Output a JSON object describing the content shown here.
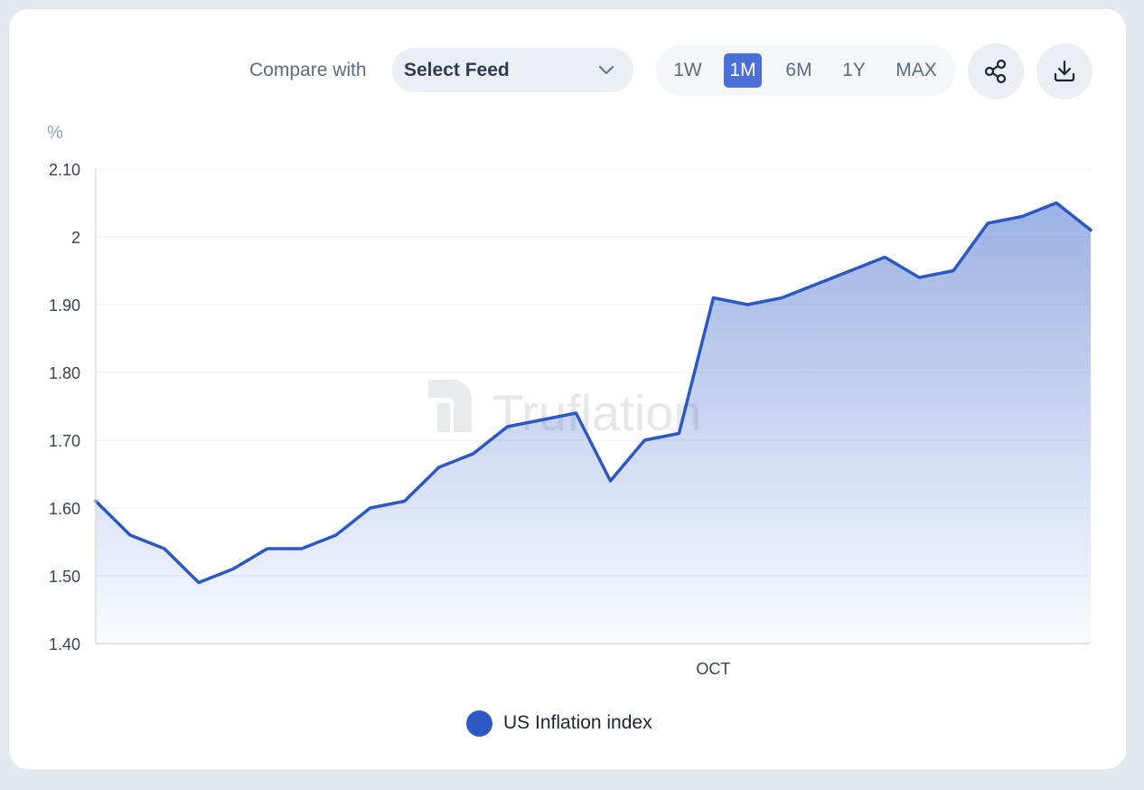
{
  "toolbar": {
    "compare_label": "Compare with",
    "select_value": "Select Feed",
    "ranges": [
      "1W",
      "1M",
      "6M",
      "1Y",
      "MAX"
    ],
    "active_range": "1M",
    "share_icon": "share-icon",
    "download_icon": "download-icon"
  },
  "watermark": "Truflation",
  "colors": {
    "line": "#2c58c4",
    "fill": "#4a73cf",
    "active_range_bg": "#4a6fd6"
  },
  "chart_data": {
    "type": "area",
    "ylabel": "%",
    "ylim": [
      1.4,
      2.1
    ],
    "ytick_labels": [
      "2.10",
      "2",
      "1.90",
      "1.80",
      "1.70",
      "1.60",
      "1.50",
      "1.40"
    ],
    "xtick_labels": [
      "OCT"
    ],
    "xtick_index": 18,
    "grid": true,
    "legend": "bottom-center",
    "series": [
      {
        "name": "US Inflation index",
        "values": [
          1.61,
          1.56,
          1.54,
          1.49,
          1.51,
          1.54,
          1.54,
          1.56,
          1.6,
          1.61,
          1.66,
          1.68,
          1.72,
          1.73,
          1.74,
          1.64,
          1.7,
          1.71,
          1.91,
          1.9,
          1.91,
          1.93,
          1.95,
          1.97,
          1.94,
          1.95,
          2.02,
          2.03,
          2.05,
          2.01
        ]
      }
    ]
  }
}
